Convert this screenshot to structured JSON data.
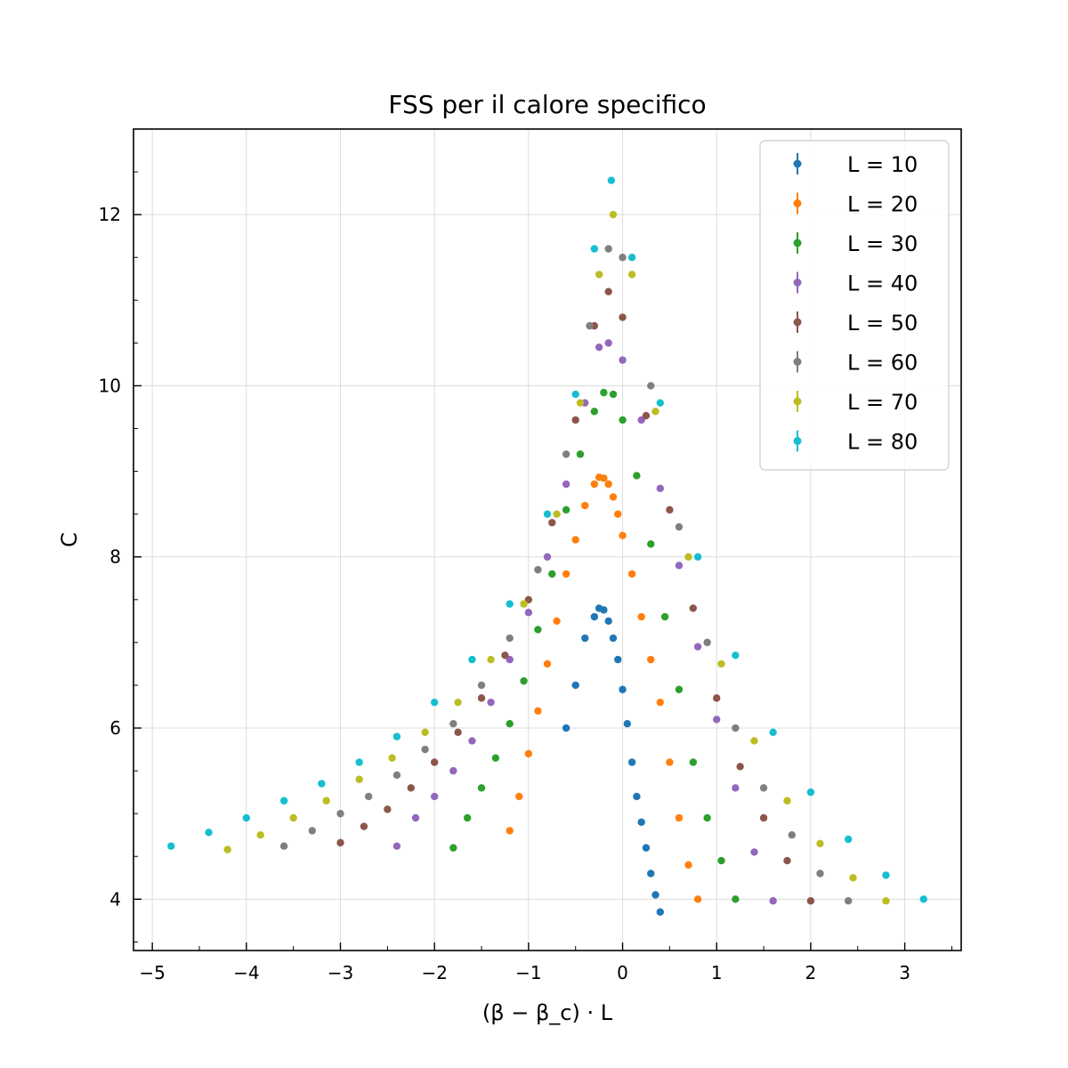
{
  "chart_data": {
    "type": "scatter",
    "title": "FSS per il calore specifico",
    "xlabel": "(β − β_c) · L",
    "ylabel": "C",
    "xlim": [
      -5.2,
      3.6
    ],
    "ylim": [
      3.4,
      13.0
    ],
    "xticks": [
      -5,
      -4,
      -3,
      -2,
      -1,
      0,
      1,
      2,
      3
    ],
    "xtick_labels": [
      "−5",
      "−4",
      "−3",
      "−2",
      "−1",
      "0",
      "1",
      "2",
      "3"
    ],
    "yticks": [
      4,
      6,
      8,
      10,
      12
    ],
    "ytick_labels": [
      "4",
      "6",
      "8",
      "10",
      "12"
    ],
    "grid": true,
    "legend_position": "top-right",
    "series": [
      {
        "name": "L = 10",
        "color": "#1f77b4",
        "x": [
          -0.6,
          -0.5,
          -0.4,
          -0.3,
          -0.25,
          -0.2,
          -0.15,
          -0.1,
          -0.05,
          0.0,
          0.05,
          0.1,
          0.15,
          0.2,
          0.25,
          0.3,
          0.35,
          0.4
        ],
        "y": [
          6.0,
          6.5,
          7.05,
          7.3,
          7.4,
          7.38,
          7.25,
          7.05,
          6.8,
          6.45,
          6.05,
          5.6,
          5.2,
          4.9,
          4.6,
          4.3,
          4.05,
          3.85
        ]
      },
      {
        "name": "L = 20",
        "color": "#ff7f0e",
        "x": [
          -1.2,
          -1.1,
          -1.0,
          -0.9,
          -0.8,
          -0.7,
          -0.6,
          -0.5,
          -0.4,
          -0.3,
          -0.25,
          -0.2,
          -0.15,
          -0.1,
          -0.05,
          0.0,
          0.1,
          0.2,
          0.3,
          0.4,
          0.5,
          0.6,
          0.7,
          0.8
        ],
        "y": [
          4.8,
          5.2,
          5.7,
          6.2,
          6.75,
          7.25,
          7.8,
          8.2,
          8.6,
          8.85,
          8.93,
          8.92,
          8.85,
          8.7,
          8.5,
          8.25,
          7.8,
          7.3,
          6.8,
          6.3,
          5.6,
          4.95,
          4.4,
          4.0
        ]
      },
      {
        "name": "L = 30",
        "color": "#2ca02c",
        "x": [
          -1.8,
          -1.65,
          -1.5,
          -1.35,
          -1.2,
          -1.05,
          -0.9,
          -0.75,
          -0.6,
          -0.45,
          -0.3,
          -0.2,
          -0.1,
          0.0,
          0.15,
          0.3,
          0.45,
          0.6,
          0.75,
          0.9,
          1.05,
          1.2
        ],
        "y": [
          4.6,
          4.95,
          5.3,
          5.65,
          6.05,
          6.55,
          7.15,
          7.8,
          8.55,
          9.2,
          9.7,
          9.92,
          9.9,
          9.6,
          8.95,
          8.15,
          7.3,
          6.45,
          5.6,
          4.95,
          4.45,
          4.0
        ]
      },
      {
        "name": "L = 40",
        "color": "#9467bd",
        "x": [
          -2.4,
          -2.2,
          -2.0,
          -1.8,
          -1.6,
          -1.4,
          -1.2,
          -1.0,
          -0.8,
          -0.6,
          -0.4,
          -0.25,
          -0.15,
          0.0,
          0.2,
          0.4,
          0.6,
          0.8,
          1.0,
          1.2,
          1.4,
          1.6
        ],
        "y": [
          4.62,
          4.95,
          5.2,
          5.5,
          5.85,
          6.3,
          6.8,
          7.35,
          8.0,
          8.85,
          9.8,
          10.45,
          10.5,
          10.3,
          9.6,
          8.8,
          7.9,
          6.95,
          6.1,
          5.3,
          4.55,
          3.98
        ]
      },
      {
        "name": "L = 50",
        "color": "#8c564b",
        "x": [
          -3.0,
          -2.75,
          -2.5,
          -2.25,
          -2.0,
          -1.75,
          -1.5,
          -1.25,
          -1.0,
          -0.75,
          -0.5,
          -0.3,
          -0.15,
          0.0,
          0.25,
          0.5,
          0.75,
          1.0,
          1.25,
          1.5,
          1.75,
          2.0
        ],
        "y": [
          4.66,
          4.85,
          5.05,
          5.3,
          5.6,
          5.95,
          6.35,
          6.85,
          7.5,
          8.4,
          9.6,
          10.7,
          11.1,
          10.8,
          9.65,
          8.55,
          7.4,
          6.35,
          5.55,
          4.95,
          4.45,
          3.98
        ]
      },
      {
        "name": "L = 60",
        "color": "#7f7f7f",
        "x": [
          -3.6,
          -3.3,
          -3.0,
          -2.7,
          -2.4,
          -2.1,
          -1.8,
          -1.5,
          -1.2,
          -0.9,
          -0.6,
          -0.35,
          -0.15,
          0.0,
          0.3,
          0.6,
          0.9,
          1.2,
          1.5,
          1.8,
          2.1,
          2.4
        ],
        "y": [
          4.62,
          4.8,
          5.0,
          5.2,
          5.45,
          5.75,
          6.05,
          6.5,
          7.05,
          7.85,
          9.2,
          10.7,
          11.6,
          11.5,
          10.0,
          8.35,
          7.0,
          6.0,
          5.3,
          4.75,
          4.3,
          3.98
        ]
      },
      {
        "name": "L = 70",
        "color": "#bcbd22",
        "x": [
          -4.2,
          -3.85,
          -3.5,
          -3.15,
          -2.8,
          -2.45,
          -2.1,
          -1.75,
          -1.4,
          -1.05,
          -0.7,
          -0.45,
          -0.25,
          -0.1,
          0.1,
          0.35,
          0.7,
          1.05,
          1.4,
          1.75,
          2.1,
          2.45,
          2.8
        ],
        "y": [
          4.58,
          4.75,
          4.95,
          5.15,
          5.4,
          5.65,
          5.95,
          6.3,
          6.8,
          7.45,
          8.5,
          9.8,
          11.3,
          12.0,
          11.3,
          9.7,
          8.0,
          6.75,
          5.85,
          5.15,
          4.65,
          4.25,
          3.98
        ]
      },
      {
        "name": "L = 80",
        "color": "#17becf",
        "x": [
          -4.8,
          -4.4,
          -4.0,
          -3.6,
          -3.2,
          -2.8,
          -2.4,
          -2.0,
          -1.6,
          -1.2,
          -0.8,
          -0.5,
          -0.3,
          -0.12,
          0.1,
          0.4,
          0.8,
          1.2,
          1.6,
          2.0,
          2.4,
          2.8,
          3.2
        ],
        "y": [
          4.62,
          4.78,
          4.95,
          5.15,
          5.35,
          5.6,
          5.9,
          6.3,
          6.8,
          7.45,
          8.5,
          9.9,
          11.6,
          12.4,
          11.5,
          9.8,
          8.0,
          6.85,
          5.95,
          5.25,
          4.7,
          4.28,
          4.0
        ]
      }
    ]
  }
}
